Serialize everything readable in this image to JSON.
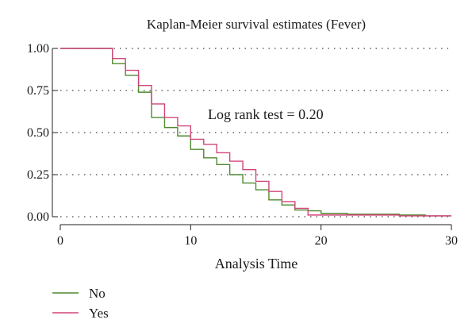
{
  "chart_data": {
    "type": "line",
    "step": true,
    "title": "Kaplan-Meier survival estimates (Fever)",
    "xlabel": "Analysis Time",
    "ylabel": "",
    "xlim": [
      0,
      30
    ],
    "ylim": [
      0,
      1
    ],
    "x_ticks": [
      0,
      10,
      20,
      30
    ],
    "x_tick_labels": [
      "0",
      "10",
      "20",
      "30"
    ],
    "y_ticks": [
      0,
      0.25,
      0.5,
      0.75,
      1
    ],
    "y_tick_labels": [
      "0.00",
      "0.25",
      "0.50",
      "0.75",
      "1.00"
    ],
    "grid": "horizontal dotted",
    "legend_position": "bottom-left",
    "annotation": "Log rank test = 0.20",
    "series": [
      {
        "name": "No",
        "color": "#4e8a2e",
        "x": [
          0,
          4,
          5,
          6,
          7,
          8,
          9,
          10,
          11,
          12,
          13,
          14,
          15,
          16,
          17,
          18,
          19,
          20,
          22,
          26,
          28,
          30
        ],
        "y": [
          1.0,
          0.91,
          0.84,
          0.74,
          0.59,
          0.53,
          0.48,
          0.4,
          0.35,
          0.31,
          0.25,
          0.2,
          0.16,
          0.1,
          0.07,
          0.04,
          0.035,
          0.02,
          0.015,
          0.01,
          0.005,
          0.005
        ]
      },
      {
        "name": "Yes",
        "color": "#d2457a",
        "x": [
          0,
          4,
          5,
          6,
          7,
          8,
          9,
          10,
          11,
          12,
          13,
          14,
          15,
          16,
          17,
          18,
          19,
          22,
          26,
          30
        ],
        "y": [
          1.0,
          0.94,
          0.87,
          0.78,
          0.67,
          0.59,
          0.54,
          0.46,
          0.43,
          0.38,
          0.33,
          0.28,
          0.21,
          0.15,
          0.09,
          0.05,
          0.01,
          0.01,
          0.005,
          0.005
        ]
      }
    ]
  }
}
